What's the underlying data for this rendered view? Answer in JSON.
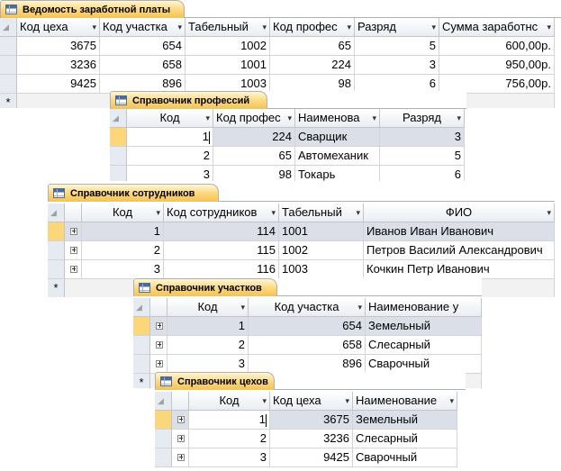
{
  "windows": {
    "vedomost": {
      "title": "Ведомость заработной платы",
      "headers": [
        "Код цеха",
        "Код участка",
        "Табельный",
        "Код профес",
        "Разряд",
        "Сумма заработнс"
      ],
      "rows": [
        [
          "3675",
          "654",
          "1002",
          "65",
          "5",
          "600,00р."
        ],
        [
          "3236",
          "658",
          "1001",
          "224",
          "3",
          "950,00р."
        ],
        [
          "9425",
          "896",
          "1003",
          "98",
          "6",
          "756,00р."
        ]
      ],
      "new_row_marker": "*"
    },
    "professii": {
      "title": "Справочник профессий",
      "headers": [
        "Код",
        "Код профес",
        "Наименова",
        "Разряд"
      ],
      "rows": [
        [
          "1",
          "224",
          "Сварщик",
          "3"
        ],
        [
          "2",
          "65",
          "Автомеханик",
          "5"
        ],
        [
          "3",
          "98",
          "Токарь",
          "6"
        ]
      ]
    },
    "sotrudniki": {
      "title": "Справочник сотрудников",
      "headers": [
        "Код",
        "Код сотрудников",
        "Табельный",
        "ФИО"
      ],
      "rows": [
        [
          "1",
          "114",
          "1001",
          "Иванов Иван Иванович"
        ],
        [
          "2",
          "115",
          "1002",
          "Петров Василий Александрович"
        ],
        [
          "3",
          "116",
          "1003",
          "Кочкин Петр Иванович"
        ]
      ],
      "new_row_marker": "*"
    },
    "uchastki": {
      "title": "Справочник участков",
      "headers": [
        "Код",
        "Код участка",
        "Наименование у"
      ],
      "rows": [
        [
          "1",
          "654",
          "Земельный"
        ],
        [
          "2",
          "658",
          "Слесарный"
        ],
        [
          "3",
          "896",
          "Сварочный"
        ]
      ],
      "new_row_marker": "*"
    },
    "tsekhi": {
      "title": "Справочник цехов",
      "headers": [
        "Код",
        "Код цеха",
        "Наименование"
      ],
      "rows": [
        [
          "1",
          "3675",
          "Земельный"
        ],
        [
          "2",
          "3236",
          "Слесарный"
        ],
        [
          "3",
          "9425",
          "Сварочный"
        ]
      ]
    }
  },
  "icons": {
    "sort": "dropdown-arrow-icon",
    "expand": "expand-plus-icon",
    "table": "table-icon"
  }
}
